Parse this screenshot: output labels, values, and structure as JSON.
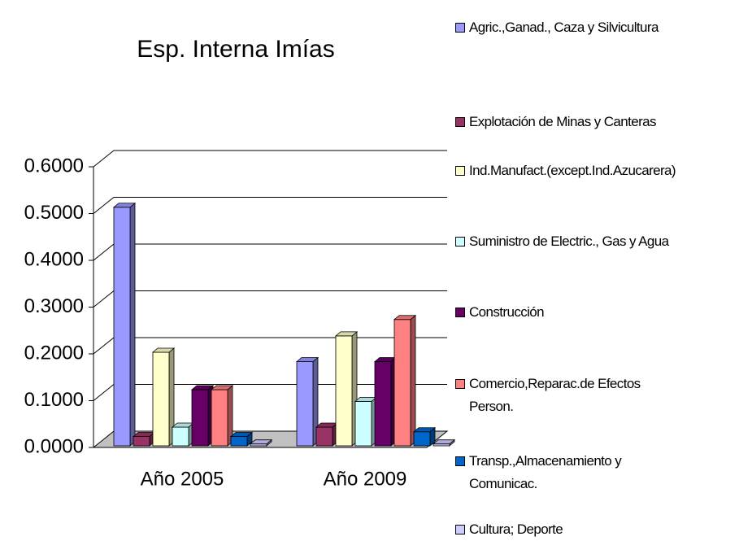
{
  "chart_data": {
    "type": "bar3d",
    "title": "Esp. Interna Imías",
    "categories": [
      "Año 2005",
      "Año 2009"
    ],
    "series": [
      {
        "name": "Agric.,Ganad., Caza y Silvicultura",
        "color": "#9999ff",
        "values": [
          0.51,
          0.18
        ]
      },
      {
        "name": "Explotación de Minas y Canteras",
        "color": "#993366",
        "values": [
          0.02,
          0.04
        ]
      },
      {
        "name": "Ind.Manufact.(except.Ind.Azucarera)",
        "color": "#ffffcc",
        "values": [
          0.2,
          0.235
        ]
      },
      {
        "name": "Suministro de Electric., Gas y Agua",
        "color": "#ccffff",
        "values": [
          0.04,
          0.095
        ]
      },
      {
        "name": "Construcción",
        "color": "#660066",
        "values": [
          0.12,
          0.18
        ]
      },
      {
        "name": "Comercio,Reparac.de Efectos Person.",
        "color": "#ff8080",
        "values": [
          0.12,
          0.27
        ]
      },
      {
        "name": "Transp.,Almacenamiento y Comunicac.",
        "color": "#0066cc",
        "values": [
          0.02,
          0.03
        ]
      },
      {
        "name": "Cultura; Deporte",
        "color": "#ccccff",
        "values": [
          0.004,
          0.004
        ]
      }
    ],
    "ylim": [
      0,
      0.6
    ],
    "yticks": [
      {
        "value": 0,
        "label": "0.0000"
      },
      {
        "value": 0.1,
        "label": "0.1000"
      },
      {
        "value": 0.2,
        "label": "0.2000"
      },
      {
        "value": 0.3,
        "label": "0.3000"
      },
      {
        "value": 0.4,
        "label": "0.4000"
      },
      {
        "value": 0.5,
        "label": "0.5000"
      },
      {
        "value": 0.6,
        "label": "0.6000"
      }
    ],
    "grid": true,
    "legend": "right"
  }
}
